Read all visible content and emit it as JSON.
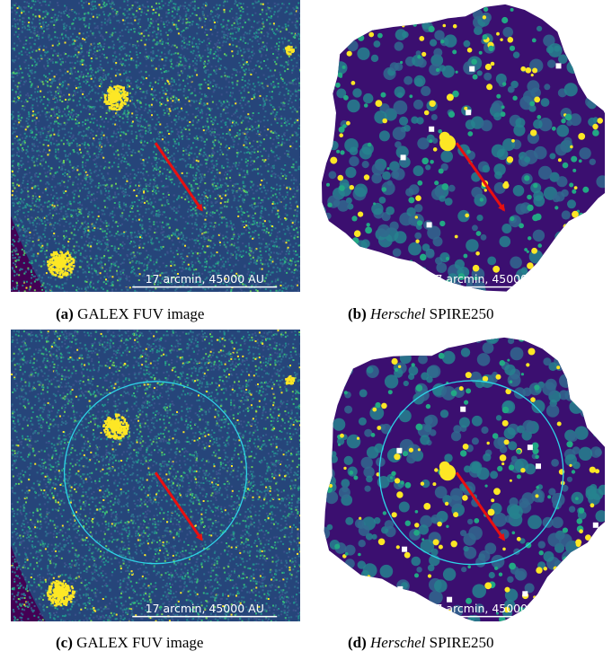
{
  "panels": [
    {
      "id": "a",
      "label": "(a)",
      "caption": "GALEX FUV image",
      "caption_italic": "",
      "scale_label": "17 arcmin, 45000 AU",
      "circle": false,
      "type": "galex"
    },
    {
      "id": "b",
      "label": "(b)",
      "caption": " SPIRE250",
      "caption_italic": "Herschel",
      "scale_label": "17 arcmin, 45000 AU",
      "circle": false,
      "type": "herschel"
    },
    {
      "id": "c",
      "label": "(c)",
      "caption": "GALEX FUV image",
      "caption_italic": "",
      "scale_label": "17 arcmin, 45000 AU",
      "circle": true,
      "type": "galex"
    },
    {
      "id": "d",
      "label": "(d)",
      "caption": " SPIRE250",
      "caption_italic": "Herschel",
      "scale_label": "17 arcmin, 45000 AU",
      "circle": true,
      "type": "herschel"
    }
  ],
  "colors": {
    "background_dark": "#440154",
    "noise_mid": "#2a788e",
    "noise_green": "#22a884",
    "bright": "#fde725",
    "arrow": "#e81010",
    "circle": "#2ed3e6"
  }
}
